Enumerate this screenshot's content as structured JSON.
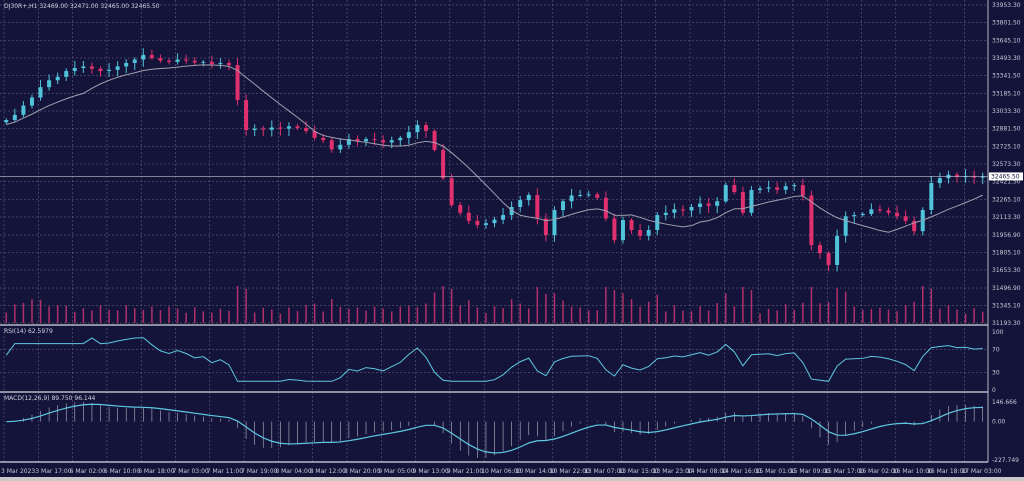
{
  "header": {
    "symbol_info": "DJ30R+,H1  32469.00 32471.00 32465.00 32465.50"
  },
  "colors": {
    "background": "#14143a",
    "grid": "#6f6f90",
    "bull": "#4fc3d9",
    "bear": "#e0306e",
    "ma": "#a0a0b0",
    "indicator_line": "#5ec8e0",
    "volume": "#b0306a"
  },
  "chart_data": [
    {
      "type": "candlestick",
      "title": "DJ30R+,H1",
      "current_price": 32465.5,
      "current_price_label": "32465.50",
      "ylim": [
        31193.3,
        33953.3
      ],
      "price_ticks": [
        "33953.30",
        "33801.50",
        "33645.10",
        "33493.30",
        "33341.50",
        "33185.10",
        "33033.30",
        "32881.50",
        "32725.10",
        "32573.30",
        "32421.50",
        "32265.10",
        "32113.30",
        "31956.90",
        "31805.10",
        "31653.30",
        "31496.90",
        "31345.10",
        "31193.30"
      ],
      "closes": [
        32955,
        33000,
        33080,
        33150,
        33240,
        33300,
        33330,
        33380,
        33406,
        33420,
        33400,
        33380,
        33390,
        33420,
        33450,
        33480,
        33520,
        33493,
        33470,
        33460,
        33480,
        33470,
        33455,
        33460,
        33440,
        33450,
        33432,
        33128,
        32868,
        32880,
        32870,
        32890,
        32880,
        32900,
        32885,
        32860,
        32800,
        32780,
        32700,
        32740,
        32790,
        32770,
        32790,
        32780,
        32760,
        32780,
        32800,
        32850,
        32912,
        32860,
        32695,
        32450,
        32217,
        32150,
        32080,
        32044,
        32060,
        32090,
        32130,
        32200,
        32260,
        32304,
        32100,
        31956,
        32174,
        32250,
        32300,
        32304,
        32310,
        32280,
        32100,
        31913,
        32087,
        32000,
        31950,
        32000,
        32130,
        32150,
        32180,
        32170,
        32200,
        32230,
        32210,
        32250,
        32390,
        32330,
        32150,
        32348,
        32360,
        32370,
        32350,
        32380,
        32390,
        32300,
        31870,
        31800,
        31697,
        31950,
        32120,
        32130,
        32140,
        32180,
        32170,
        32150,
        32120,
        32080,
        31990,
        32174,
        32408,
        32450,
        32480,
        32460,
        32470,
        32455,
        32465
      ],
      "overlays": [
        "moving-average"
      ],
      "volume": true,
      "grid": true,
      "time_ticks": [
        "3 Mar 2023",
        "3 Mar 17:00",
        "6 Mar 02:00",
        "6 Mar 10:00",
        "6 Mar 18:00",
        "7 Mar 03:00",
        "7 Mar 11:00",
        "7 Mar 19:00",
        "8 Mar 04:00",
        "8 Mar 12:00",
        "8 Mar 20:00",
        "9 Mar 05:00",
        "9 Mar 13:00",
        "9 Mar 21:00",
        "10 Mar 06:00",
        "10 Mar 14:00",
        "10 Mar 22:00",
        "13 Mar 07:00",
        "13 Mar 15:00",
        "13 Mar 23:00",
        "14 Mar 08:00",
        "14 Mar 16:00",
        "15 Mar 01:00",
        "15 Mar 09:00",
        "15 Mar 17:00",
        "16 Mar 02:00",
        "16 Mar 10:00",
        "16 Mar 18:00",
        "17 Mar 03:00"
      ]
    },
    {
      "type": "line",
      "title": "RSI(14) 62.5979",
      "ylim": [
        0,
        100
      ],
      "levels": [
        "100",
        "70",
        "30",
        "0"
      ]
    },
    {
      "type": "bar",
      "title": "MACD(12,26,9) 89.750 96.144",
      "ticks": [
        "146.666",
        "0.00",
        "-227.749"
      ]
    }
  ]
}
